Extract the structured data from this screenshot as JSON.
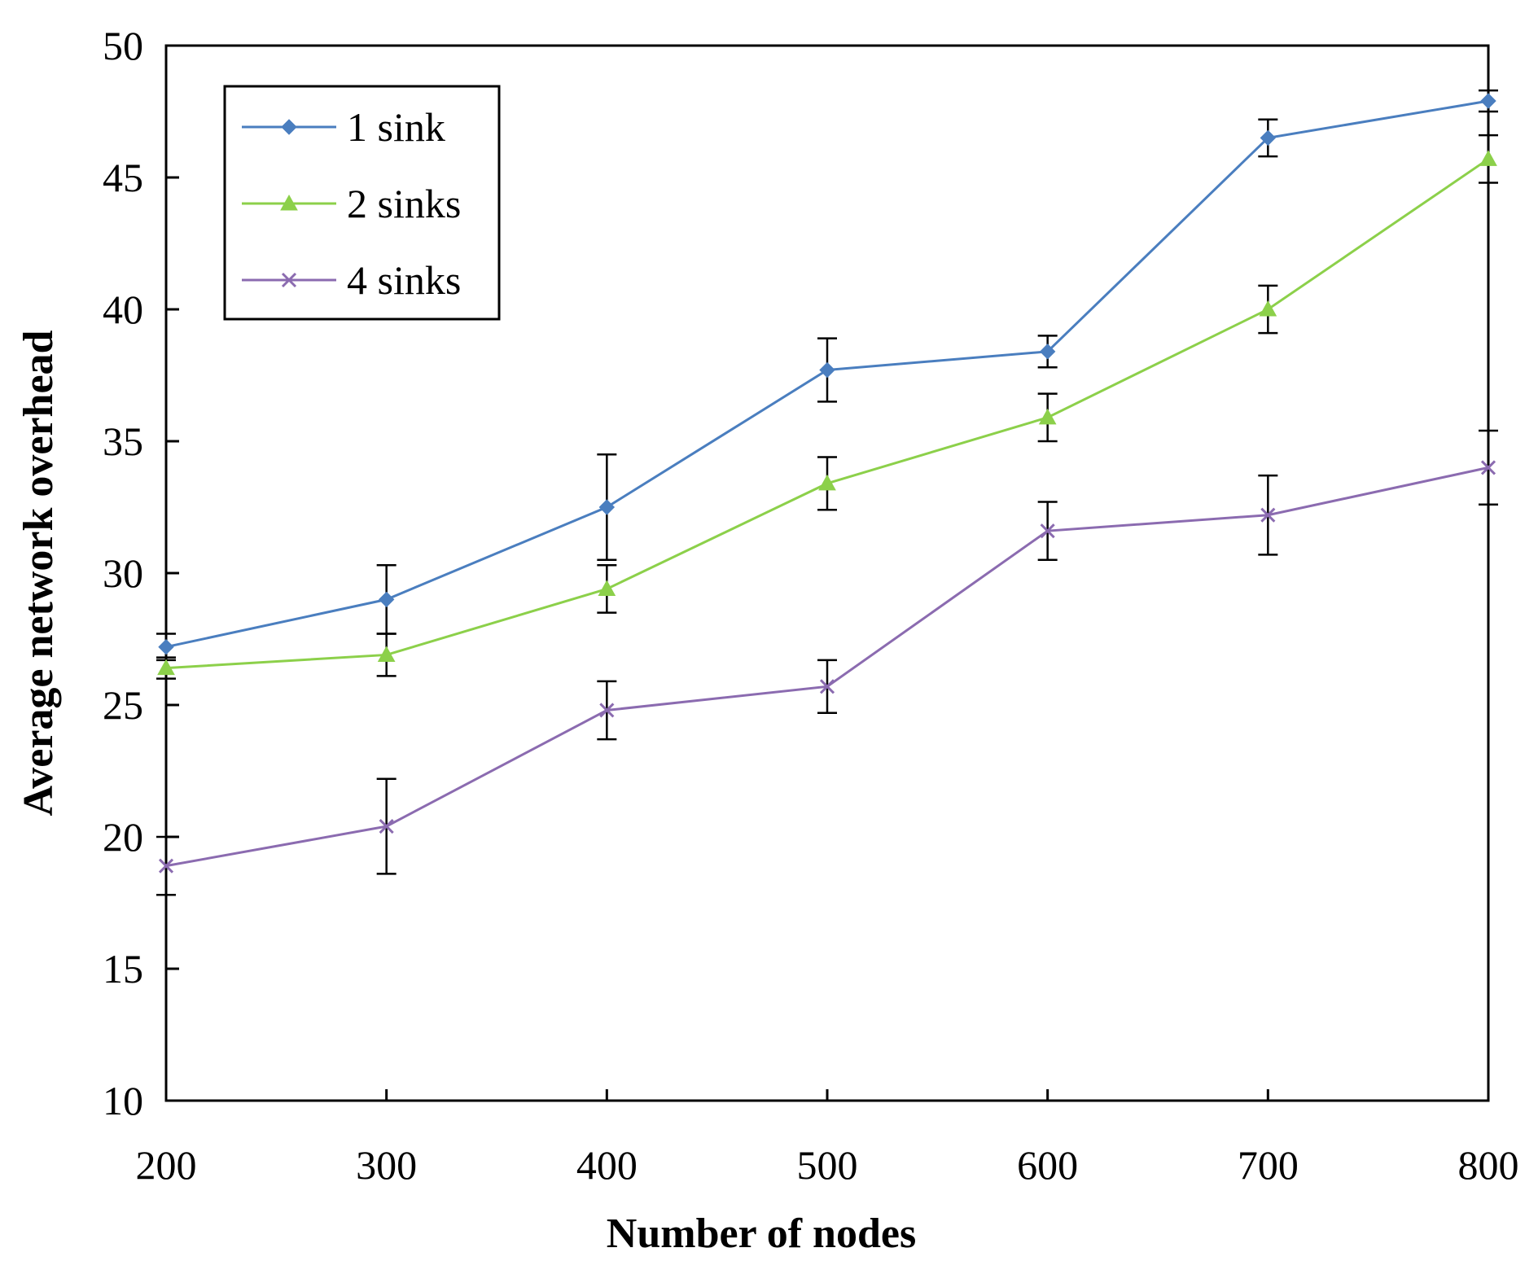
{
  "chart_data": {
    "type": "line",
    "title": "",
    "xlabel": "Number of nodes",
    "ylabel": "Average network overhead",
    "x": [
      200,
      300,
      400,
      500,
      600,
      700,
      800
    ],
    "xlim": [
      200,
      800
    ],
    "ylim": [
      10,
      50
    ],
    "xticks": [
      "200",
      "300",
      "400",
      "500",
      "600",
      "700",
      "800"
    ],
    "yticks": [
      "10",
      "15",
      "20",
      "25",
      "30",
      "35",
      "40",
      "45",
      "50"
    ],
    "grid": false,
    "legend_position": "top-left",
    "series": [
      {
        "name": "1 sink",
        "color": "#4a7ebf",
        "marker": "diamond",
        "values": [
          27.2,
          29.0,
          32.5,
          37.7,
          38.4,
          46.5,
          47.9
        ],
        "error": [
          0.5,
          1.3,
          2.0,
          1.2,
          0.6,
          0.7,
          0.4
        ]
      },
      {
        "name": "2 sinks",
        "color": "#8cd04a",
        "marker": "triangle",
        "values": [
          26.4,
          26.9,
          29.4,
          33.4,
          35.9,
          40.0,
          45.7
        ],
        "error": [
          0.4,
          0.8,
          0.9,
          1.0,
          0.9,
          0.9,
          0.9
        ]
      },
      {
        "name": "4 sinks",
        "color": "#8b6bb0",
        "marker": "x",
        "values": [
          18.9,
          20.4,
          24.8,
          25.7,
          31.6,
          32.2,
          34.0
        ],
        "error": [
          1.1,
          1.8,
          1.1,
          1.0,
          1.1,
          1.5,
          1.4
        ]
      }
    ]
  }
}
